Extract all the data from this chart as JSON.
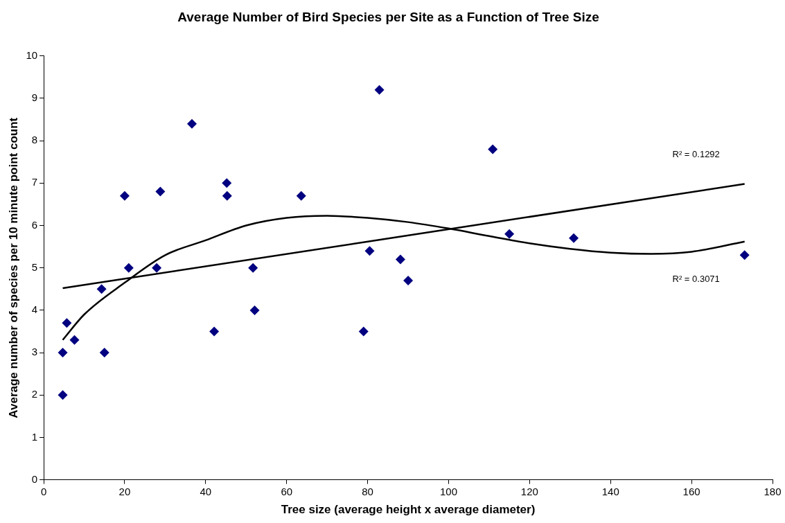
{
  "chart_data": {
    "type": "scatter",
    "title": "Average Number of Bird Species per Site as a Function of Tree Size",
    "xlabel": "Tree size (average height x average diameter)",
    "ylabel": "Average number of species per 10 minute point count",
    "xlim": [
      0,
      180
    ],
    "xticks": [
      0,
      20,
      40,
      60,
      80,
      100,
      120,
      140,
      160,
      180
    ],
    "ylim": [
      0,
      10
    ],
    "yticks": [
      0,
      1,
      2,
      3,
      4,
      5,
      6,
      7,
      8,
      9,
      10
    ],
    "grid": false,
    "legend": false,
    "marker": "diamond",
    "series": [
      {
        "color": "#000080",
        "x": [
          4.7,
          4.7,
          5.7,
          7.6,
          14.3,
          15.0,
          20.0,
          21.0,
          27.9,
          28.8,
          36.6,
          42.1,
          45.2,
          45.3,
          51.7,
          52.1,
          63.6,
          79.0,
          80.5,
          82.9,
          88.1,
          90.0,
          110.9,
          115.0,
          130.9,
          173.1
        ],
        "values": [
          2.0,
          3.0,
          3.7,
          3.3,
          4.5,
          3.0,
          6.7,
          5.0,
          5.0,
          6.8,
          8.4,
          3.5,
          7.0,
          6.7,
          5.0,
          4.0,
          6.7,
          3.5,
          5.4,
          9.2,
          5.2,
          4.7,
          7.8,
          5.8,
          5.7,
          5.3
        ]
      },
      {
        "type": "line",
        "color": "#000000",
        "marker": "none",
        "line_style": "solid",
        "x": [
          4.7,
          173.1
        ],
        "values": [
          4.52,
          6.98
        ]
      },
      {
        "type": "line",
        "color": "#000000",
        "marker": "none",
        "line_style": "solid",
        "x": [
          4.7,
          10,
          20,
          30,
          40,
          50,
          60,
          70,
          80,
          90,
          100,
          110,
          120,
          130,
          140,
          150,
          160,
          173.1
        ],
        "values": [
          3.3,
          3.9,
          4.65,
          5.3,
          5.65,
          6.0,
          6.18,
          6.23,
          6.18,
          6.08,
          5.93,
          5.75,
          5.58,
          5.45,
          5.36,
          5.33,
          5.38,
          5.62
        ]
      }
    ],
    "annotations": [
      "R² = 0.1292",
      "R² = 0.3071"
    ]
  }
}
